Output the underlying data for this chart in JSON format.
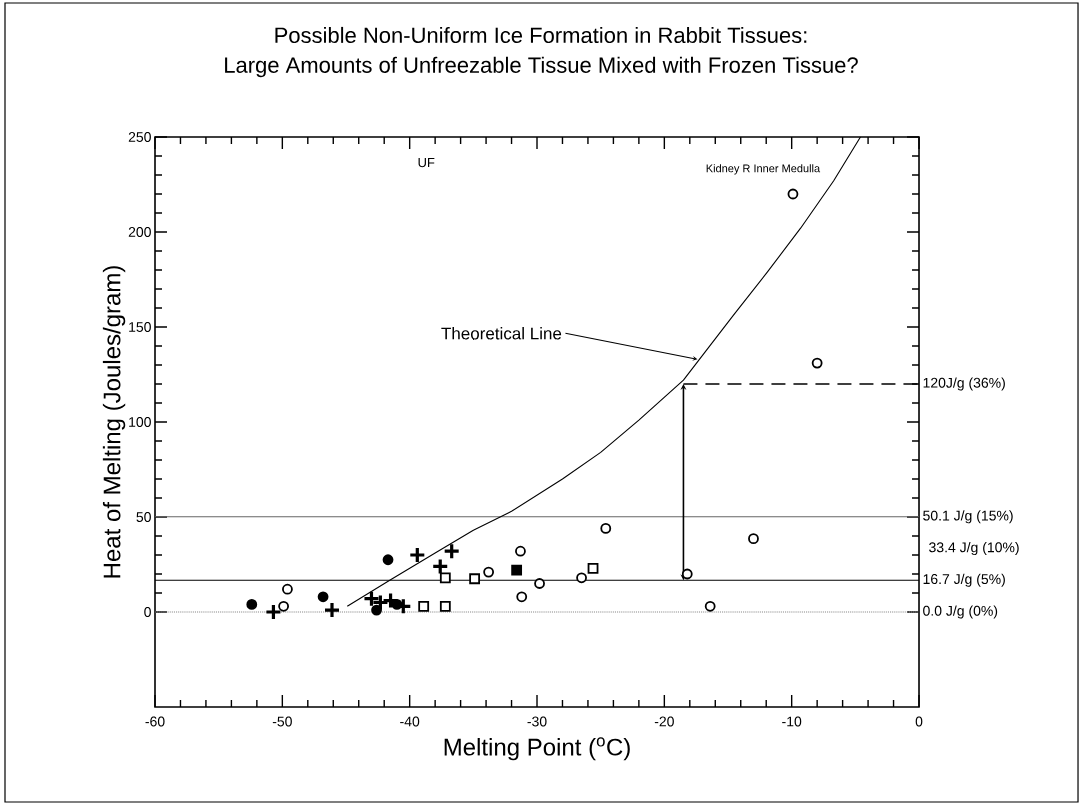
{
  "chart_data": {
    "type": "scatter",
    "title": "Possible Non-Uniform Ice Formation in Rabbit Tissues:",
    "subtitle": "Large Amounts of Unfreezable Tissue Mixed with Frozen Tissue?",
    "xlabel": "Melting Point ($^{o}$C)",
    "ylabel": "Heat of Melting (Joules/gram)",
    "xlim": [
      -60,
      0
    ],
    "ylim": [
      -50,
      250
    ],
    "xticks": [
      -60,
      -50,
      -40,
      -30,
      -20,
      -10,
      0
    ],
    "yticks": [
      0,
      50,
      100,
      150,
      200,
      250
    ],
    "series": [
      {
        "color": "#000000",
        "marker": "circle",
        "x": [
          -52.4,
          -46.8,
          -41.7,
          -42.6,
          -41.0
        ],
        "values": [
          4,
          8,
          27.5,
          1,
          4
        ]
      },
      {
        "color": "#000000",
        "marker": "open circle",
        "x": [
          -49.6,
          -49.9,
          -33.8,
          -31.3,
          -31.2,
          -29.8,
          -26.5,
          -24.6,
          -18.2,
          -16.4,
          -13.0,
          -9.9,
          -8.0
        ],
        "values": [
          12,
          3,
          21,
          32,
          8,
          15,
          18,
          44,
          20,
          3,
          38.6,
          220,
          131
        ]
      },
      {
        "color": "#000000",
        "marker": "cross",
        "x": [
          -50.7,
          -46.1,
          -43.0,
          -42.3,
          -41.5,
          -40.5,
          -39.4,
          -37.6,
          -36.7
        ],
        "values": [
          0,
          1,
          7,
          5,
          6,
          3,
          30,
          24,
          32
        ]
      },
      {
        "color": "#000000",
        "marker": "square",
        "x": [
          -38.9,
          -37.2,
          -37.2,
          -34.9,
          -25.6
        ],
        "values": [
          3,
          3,
          18,
          17.5,
          23
        ]
      },
      {
        "color": "#000000",
        "marker": "square",
        "x": [
          -31.6
        ],
        "values": [
          22
        ]
      },
      {
        "type": "line",
        "color": "#000000",
        "marker": "none",
        "line_style": "solid",
        "x": [
          -44.9,
          -41.5,
          -38,
          -35,
          -32,
          -28,
          -25,
          -22,
          -18.5,
          -14.6,
          -11.9,
          -9.3,
          -6.7,
          -4.6
        ],
        "values": [
          3,
          17,
          31,
          43,
          53,
          70,
          84,
          101,
          122,
          156,
          179,
          202,
          227,
          250
        ]
      },
      {
        "type": "line",
        "color": "#000000",
        "marker": "none",
        "line_style": "dashed",
        "x": [
          -18.5,
          0
        ],
        "values": [
          120,
          120
        ]
      }
    ],
    "ref_lines": [
      {
        "axis": "y",
        "value": 50.1,
        "label": "50.1 J/g (15%)",
        "color": "#666666",
        "line_style": "solid"
      },
      {
        "axis": "y",
        "value": 16.7,
        "label": "16.7 J/g (5%)",
        "color": "#000000",
        "line_style": "solid"
      },
      {
        "axis": "y",
        "value": 0,
        "label": "0.0 J/g (0%)",
        "color": "#888888",
        "line_style": "dotted"
      }
    ],
    "annotations": [
      "UF",
      {
        "text": "Kidney R Inner Medulla",
        "x": -9.9,
        "y": 220
      },
      {
        "text": "Theoretical Line",
        "x": -17.4,
        "y": 133
      },
      {
        "text": "120J/g (36%)",
        "x": 0,
        "y": 120
      },
      "33.4 J/g (10%)"
    ]
  }
}
